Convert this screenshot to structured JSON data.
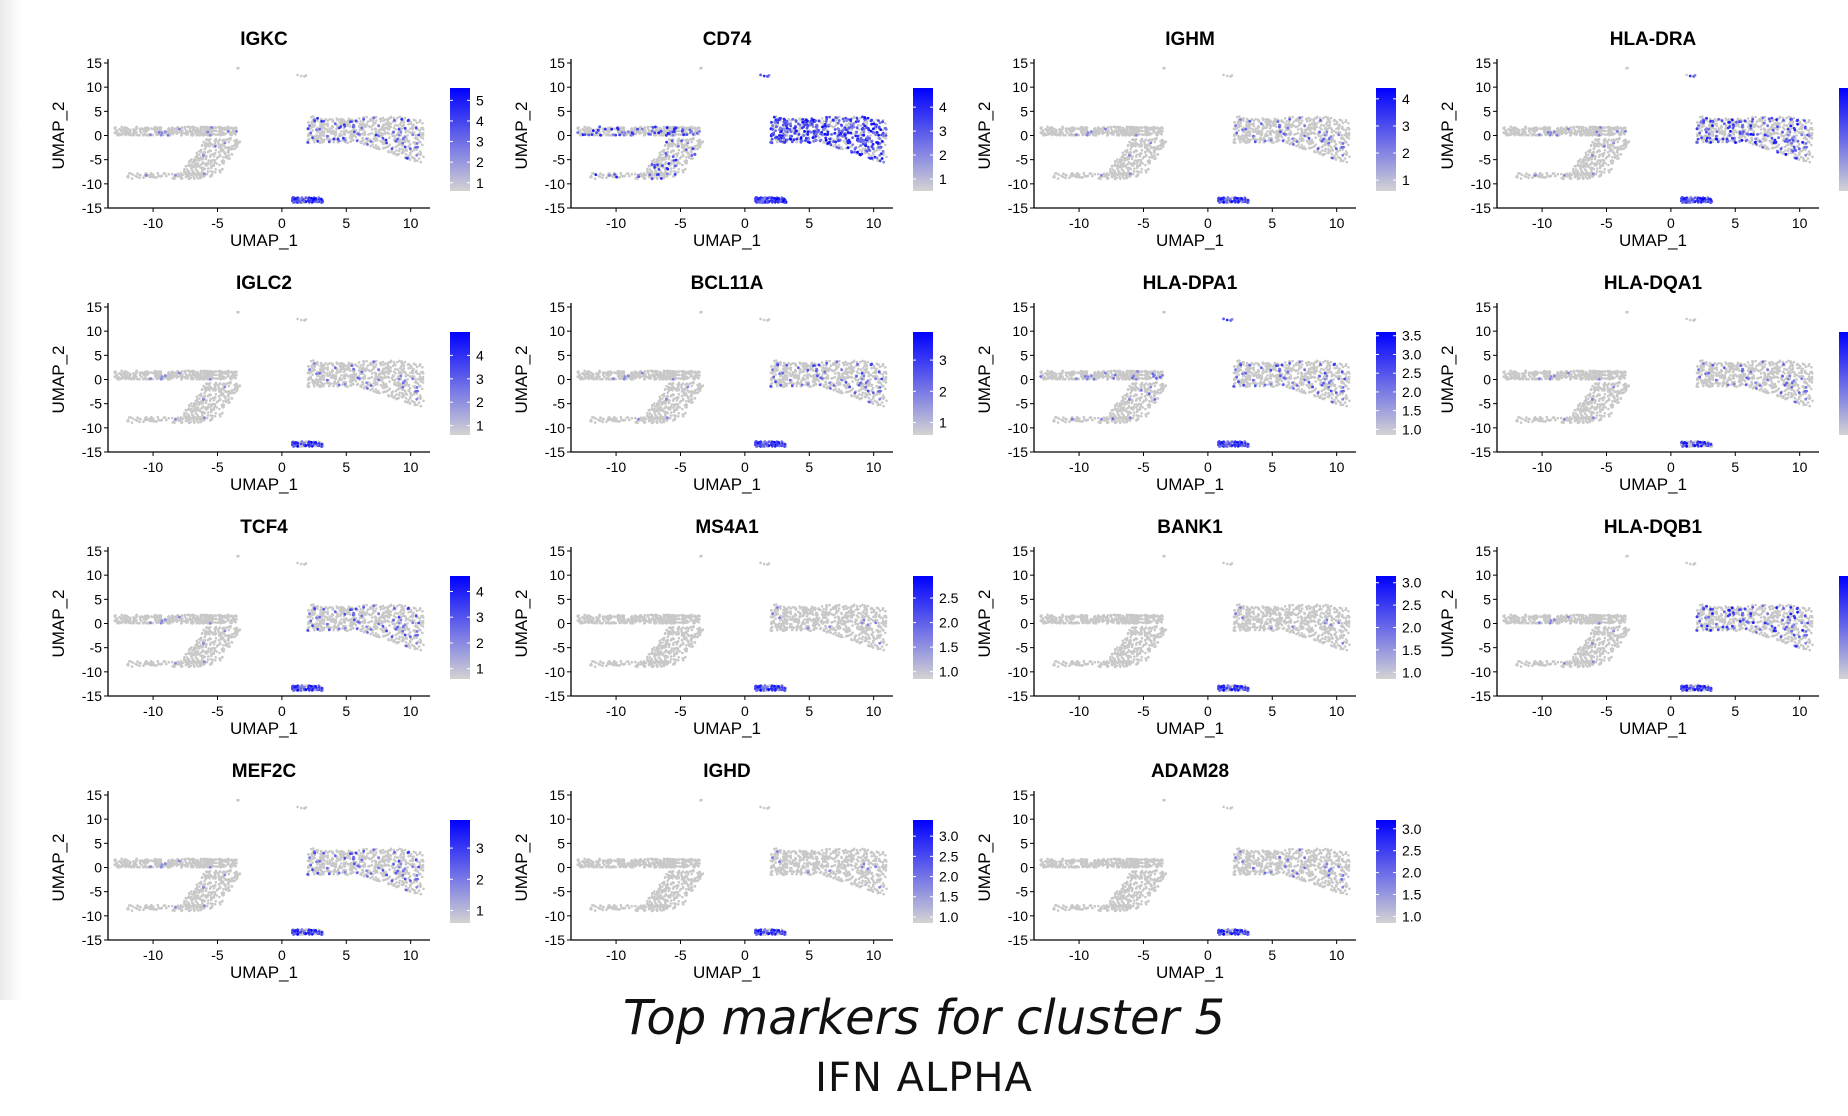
{
  "caption": "Top markers for cluster 5",
  "subcaption": "IFN ALPHA",
  "colors": {
    "low": "#d3d3d3",
    "high": "#0000ff",
    "axis": "#000000",
    "cells": "#c8c8c8"
  },
  "chart_data": [
    {
      "type": "scatter",
      "title": "IGKC",
      "xlabel": "UMAP_1",
      "ylabel": "UMAP_2",
      "xticks": [
        -10,
        -5,
        0,
        5,
        10
      ],
      "yticks": [
        15,
        10,
        5,
        0,
        -5,
        -10,
        -15
      ],
      "xlim": [
        -13.5,
        11.5
      ],
      "ylim": [
        -15,
        15
      ],
      "legend": {
        "ticks": [
          "5",
          "4",
          "3",
          "2",
          "1"
        ],
        "min": 0.6,
        "max": 5.6,
        "placement": "right"
      },
      "expr": {
        "cl5": 0.55,
        "big": 0.1,
        "small": 0.02,
        "islet": 0.05
      }
    },
    {
      "type": "scatter",
      "title": "CD74",
      "xlabel": "UMAP_1",
      "ylabel": "UMAP_2",
      "xticks": [
        -10,
        -5,
        0,
        5,
        10
      ],
      "yticks": [
        15,
        10,
        5,
        0,
        -5,
        -10,
        -15
      ],
      "xlim": [
        -13.5,
        11.5
      ],
      "ylim": [
        -15,
        15
      ],
      "legend": {
        "ticks": [
          "4",
          "3",
          "2",
          "1"
        ],
        "min": 0.5,
        "max": 4.8,
        "placement": "right"
      },
      "expr": {
        "cl5": 0.9,
        "big": 0.55,
        "small": 0.12,
        "islet": 0.9
      }
    },
    {
      "type": "scatter",
      "title": "IGHM",
      "xlabel": "UMAP_1",
      "ylabel": "UMAP_2",
      "xticks": [
        -10,
        -5,
        0,
        5,
        10
      ],
      "yticks": [
        15,
        10,
        5,
        0,
        -5,
        -10,
        -15
      ],
      "xlim": [
        -13.5,
        11.5
      ],
      "ylim": [
        -15,
        15
      ],
      "legend": {
        "ticks": [
          "4",
          "3",
          "2",
          "1"
        ],
        "min": 0.6,
        "max": 4.4,
        "placement": "right"
      },
      "expr": {
        "cl5": 0.45,
        "big": 0.06,
        "small": 0.01,
        "islet": 0.0
      }
    },
    {
      "type": "scatter",
      "title": "HLA-DRA",
      "xlabel": "UMAP_1",
      "ylabel": "UMAP_2",
      "xticks": [
        -10,
        -5,
        0,
        5,
        10
      ],
      "yticks": [
        15,
        10,
        5,
        0,
        -5,
        -10,
        -15
      ],
      "xlim": [
        -13.5,
        11.5
      ],
      "ylim": [
        -15,
        15
      ],
      "legend": {
        "ticks": [],
        "min": 0,
        "max": 1,
        "placement": "right"
      },
      "expr": {
        "cl5": 0.55,
        "big": 0.2,
        "small": 0.02,
        "islet": 0.5
      }
    },
    {
      "type": "scatter",
      "title": "IGLC2",
      "xlabel": "UMAP_1",
      "ylabel": "UMAP_2",
      "xticks": [
        -10,
        -5,
        0,
        5,
        10
      ],
      "yticks": [
        15,
        10,
        5,
        0,
        -5,
        -10,
        -15
      ],
      "xlim": [
        -13.5,
        11.5
      ],
      "ylim": [
        -15,
        15
      ],
      "legend": {
        "ticks": [
          "4",
          "3",
          "2",
          "1"
        ],
        "min": 0.6,
        "max": 5.0,
        "placement": "right"
      },
      "expr": {
        "cl5": 0.35,
        "big": 0.04,
        "small": 0.01,
        "islet": 0.0
      }
    },
    {
      "type": "scatter",
      "title": "BCL11A",
      "xlabel": "UMAP_1",
      "ylabel": "UMAP_2",
      "xticks": [
        -10,
        -5,
        0,
        5,
        10
      ],
      "yticks": [
        15,
        10,
        5,
        0,
        -5,
        -10,
        -15
      ],
      "xlim": [
        -13.5,
        11.5
      ],
      "ylim": [
        -15,
        15
      ],
      "legend": {
        "ticks": [
          "3",
          "2",
          "1"
        ],
        "min": 0.6,
        "max": 3.9,
        "placement": "right"
      },
      "expr": {
        "cl5": 0.5,
        "big": 0.08,
        "small": 0.01,
        "islet": 0.0
      }
    },
    {
      "type": "scatter",
      "title": "HLA-DPA1",
      "xlabel": "UMAP_1",
      "ylabel": "UMAP_2",
      "xticks": [
        -10,
        -5,
        0,
        5,
        10
      ],
      "yticks": [
        15,
        10,
        5,
        0,
        -5,
        -10,
        -15
      ],
      "xlim": [
        -13.5,
        11.5
      ],
      "ylim": [
        -15,
        15
      ],
      "legend": {
        "ticks": [
          "3.5",
          "3.0",
          "2.5",
          "2.0",
          "1.5",
          "1.0"
        ],
        "min": 0.85,
        "max": 3.6,
        "placement": "right"
      },
      "expr": {
        "cl5": 0.5,
        "big": 0.08,
        "small": 0.04,
        "islet": 0.6
      }
    },
    {
      "type": "scatter",
      "title": "HLA-DQA1",
      "xlabel": "UMAP_1",
      "ylabel": "UMAP_2",
      "xticks": [
        -10,
        -5,
        0,
        5,
        10
      ],
      "yticks": [
        15,
        10,
        5,
        0,
        -5,
        -10,
        -15
      ],
      "xlim": [
        -13.5,
        11.5
      ],
      "ylim": [
        -15,
        15
      ],
      "legend": {
        "ticks": [],
        "min": 0,
        "max": 1,
        "placement": "right"
      },
      "expr": {
        "cl5": 0.3,
        "big": 0.05,
        "small": 0.01,
        "islet": 0.0
      }
    },
    {
      "type": "scatter",
      "title": "TCF4",
      "xlabel": "UMAP_1",
      "ylabel": "UMAP_2",
      "xticks": [
        -10,
        -5,
        0,
        5,
        10
      ],
      "yticks": [
        15,
        10,
        5,
        0,
        -5,
        -10,
        -15
      ],
      "xlim": [
        -13.5,
        11.5
      ],
      "ylim": [
        -15,
        15
      ],
      "legend": {
        "ticks": [
          "4",
          "3",
          "2",
          "1"
        ],
        "min": 0.6,
        "max": 4.6,
        "placement": "right"
      },
      "expr": {
        "cl5": 0.45,
        "big": 0.08,
        "small": 0.01,
        "islet": 0.0
      }
    },
    {
      "type": "scatter",
      "title": "MS4A1",
      "xlabel": "UMAP_1",
      "ylabel": "UMAP_2",
      "xticks": [
        -10,
        -5,
        0,
        5,
        10
      ],
      "yticks": [
        15,
        10,
        5,
        0,
        -5,
        -10,
        -15
      ],
      "xlim": [
        -13.5,
        11.5
      ],
      "ylim": [
        -15,
        15
      ],
      "legend": {
        "ticks": [
          "2.5",
          "2.0",
          "1.5",
          "1.0"
        ],
        "min": 0.85,
        "max": 2.95,
        "placement": "right"
      },
      "expr": {
        "cl5": 0.45,
        "big": 0.02,
        "small": 0.0,
        "islet": 0.0
      }
    },
    {
      "type": "scatter",
      "title": "BANK1",
      "xlabel": "UMAP_1",
      "ylabel": "UMAP_2",
      "xticks": [
        -10,
        -5,
        0,
        5,
        10
      ],
      "yticks": [
        15,
        10,
        5,
        0,
        -5,
        -10,
        -15
      ],
      "xlim": [
        -13.5,
        11.5
      ],
      "ylim": [
        -15,
        15
      ],
      "legend": {
        "ticks": [
          "3.0",
          "2.5",
          "2.0",
          "1.5",
          "1.0"
        ],
        "min": 0.85,
        "max": 3.15,
        "placement": "right"
      },
      "expr": {
        "cl5": 0.4,
        "big": 0.02,
        "small": 0.0,
        "islet": 0.0
      }
    },
    {
      "type": "scatter",
      "title": "HLA-DQB1",
      "xlabel": "UMAP_1",
      "ylabel": "UMAP_2",
      "xticks": [
        -10,
        -5,
        0,
        5,
        10
      ],
      "yticks": [
        15,
        10,
        5,
        0,
        -5,
        -10,
        -15
      ],
      "xlim": [
        -13.5,
        11.5
      ],
      "ylim": [
        -15,
        15
      ],
      "legend": {
        "ticks": [],
        "min": 0,
        "max": 1,
        "placement": "right"
      },
      "expr": {
        "cl5": 0.4,
        "big": 0.12,
        "small": 0.01,
        "islet": 0.0
      }
    },
    {
      "type": "scatter",
      "title": "MEF2C",
      "xlabel": "UMAP_1",
      "ylabel": "UMAP_2",
      "xticks": [
        -10,
        -5,
        0,
        5,
        10
      ],
      "yticks": [
        15,
        10,
        5,
        0,
        -5,
        -10,
        -15
      ],
      "xlim": [
        -13.5,
        11.5
      ],
      "ylim": [
        -15,
        15
      ],
      "legend": {
        "ticks": [
          "3",
          "2",
          "1"
        ],
        "min": 0.6,
        "max": 3.9,
        "placement": "right"
      },
      "expr": {
        "cl5": 0.4,
        "big": 0.08,
        "small": 0.01,
        "islet": 0.0
      }
    },
    {
      "type": "scatter",
      "title": "IGHD",
      "xlabel": "UMAP_1",
      "ylabel": "UMAP_2",
      "xticks": [
        -10,
        -5,
        0,
        5,
        10
      ],
      "yticks": [
        15,
        10,
        5,
        0,
        -5,
        -10,
        -15
      ],
      "xlim": [
        -13.5,
        11.5
      ],
      "ylim": [
        -15,
        15
      ],
      "legend": {
        "ticks": [
          "3.0",
          "2.5",
          "2.0",
          "1.5",
          "1.0"
        ],
        "min": 0.85,
        "max": 3.4,
        "placement": "right"
      },
      "expr": {
        "cl5": 0.4,
        "big": 0.02,
        "small": 0.0,
        "islet": 0.0
      }
    },
    {
      "type": "scatter",
      "title": "ADAM28",
      "xlabel": "UMAP_1",
      "ylabel": "UMAP_2",
      "xticks": [
        -10,
        -5,
        0,
        5,
        10
      ],
      "yticks": [
        15,
        10,
        5,
        0,
        -5,
        -10,
        -15
      ],
      "xlim": [
        -13.5,
        11.5
      ],
      "ylim": [
        -15,
        15
      ],
      "legend": {
        "ticks": [
          "3.0",
          "2.5",
          "2.0",
          "1.5",
          "1.0"
        ],
        "min": 0.85,
        "max": 3.2,
        "placement": "right"
      },
      "expr": {
        "cl5": 0.35,
        "big": 0.03,
        "small": 0.0,
        "islet": 0.0
      }
    }
  ]
}
